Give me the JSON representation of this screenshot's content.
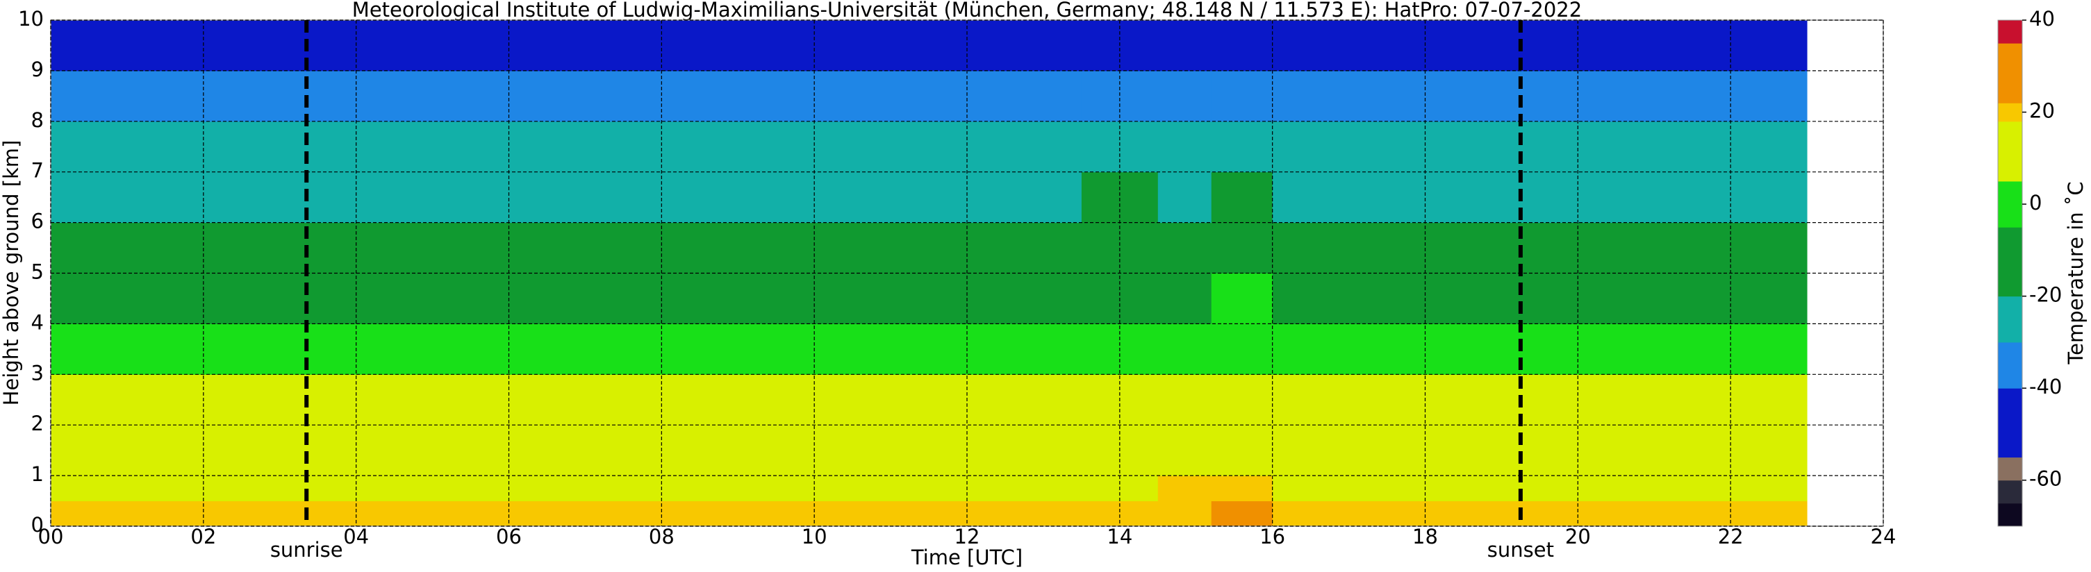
{
  "chart_data": {
    "type": "heatmap",
    "title": "Meteorological Institute of Ludwig-Maximilians-Universität (München, Germany; 48.148 N / 11.573 E):    HatPro: 07-07-2022",
    "xlabel": "Time [UTC]",
    "ylabel": "Height above ground [km]",
    "colorbar_label": "Temperature in ˚C",
    "x_edges": [
      0,
      13.5,
      14.5,
      15.2,
      16,
      23
    ],
    "y_edges": [
      0,
      0.5,
      1,
      2,
      3,
      4,
      5,
      6,
      7,
      8,
      9,
      10
    ],
    "values": [
      [
        21,
        21,
        21,
        30,
        21
      ],
      [
        17,
        17,
        18,
        19,
        17
      ],
      [
        13,
        13,
        13,
        15,
        13
      ],
      [
        8,
        8,
        9,
        11,
        8
      ],
      [
        1,
        2,
        2,
        4,
        1
      ],
      [
        -7,
        -6,
        -6,
        -5,
        -7
      ],
      [
        -14,
        -13,
        -13,
        -12,
        -14
      ],
      [
        -22,
        -19,
        -21,
        -18,
        -22
      ],
      [
        -30,
        -28,
        -29,
        -27,
        -30
      ],
      [
        -39,
        -36,
        -37,
        -36,
        -39
      ],
      [
        -53,
        -45,
        -50,
        -44,
        -53
      ]
    ],
    "levels": [
      -70,
      -65,
      -60,
      -55,
      -40,
      -30,
      -20,
      -5,
      5,
      18,
      22,
      35,
      40
    ],
    "level_colors": [
      "#0d0820",
      "#2a2a3a",
      "#8a7060",
      "#0a18c8",
      "#1f86e6",
      "#12b0a8",
      "#109a30",
      "#18e018",
      "#d8f000",
      "#f8c800",
      "#f09000",
      "#c8102e"
    ],
    "xlim": [
      0,
      24
    ],
    "ylim": [
      0,
      10
    ],
    "xticks": [
      {
        "value": 0,
        "label": "00"
      },
      {
        "value": 2,
        "label": "02"
      },
      {
        "value": 4,
        "label": "04"
      },
      {
        "value": 6,
        "label": "06"
      },
      {
        "value": 8,
        "label": "08"
      },
      10,
      12,
      14,
      16,
      18,
      20,
      22,
      24
    ],
    "yticks": [
      0,
      1,
      2,
      3,
      4,
      5,
      6,
      7,
      8,
      9,
      10
    ],
    "clim": [
      -70,
      40
    ],
    "cticks": [
      -60,
      -40,
      -20,
      0,
      20,
      40
    ],
    "vlines": [
      {
        "x": 3.35,
        "label": "sunrise"
      },
      {
        "x": 19.25,
        "label": "sunset"
      }
    ],
    "grid": true
  }
}
